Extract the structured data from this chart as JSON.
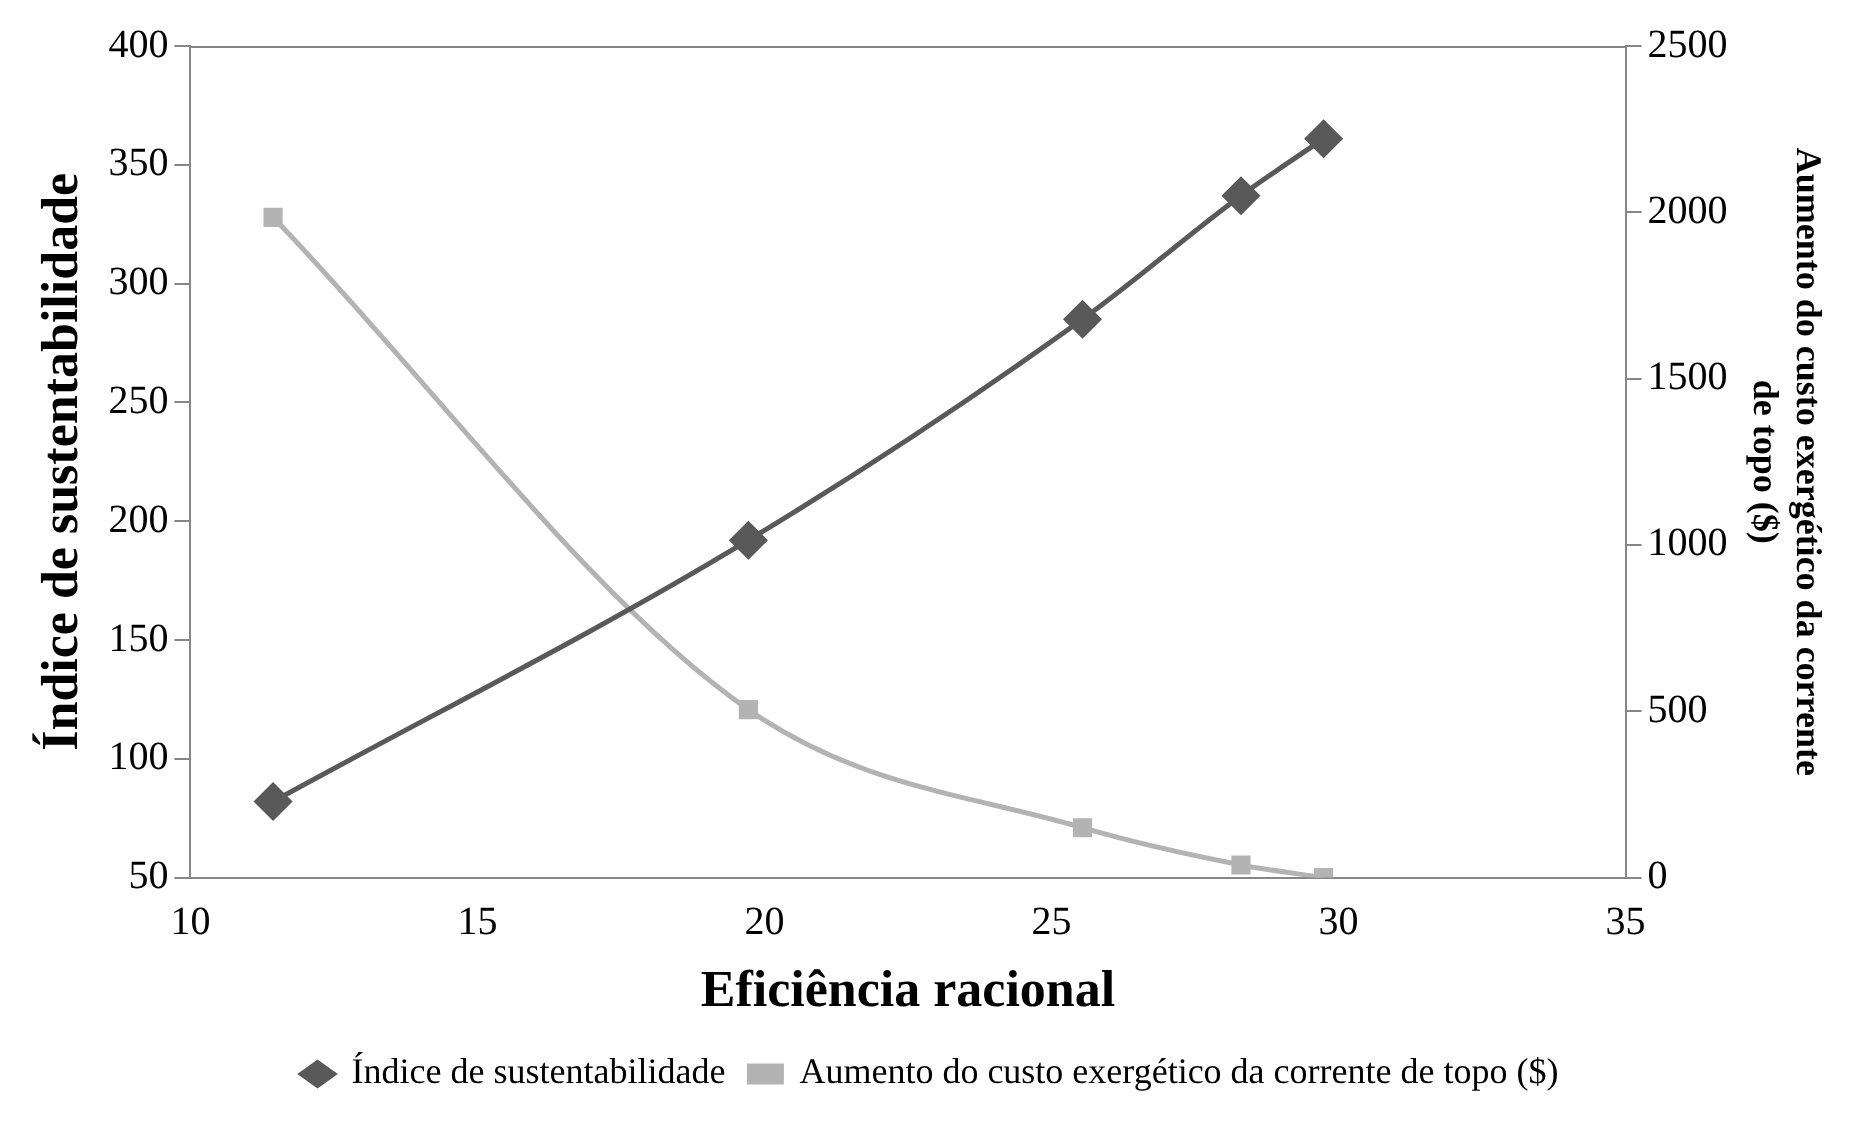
{
  "chart_data": {
    "type": "line",
    "xlabel": "Eficiência racional",
    "ylabel": "Índice de sustentabilidade",
    "y2label": "Aumento do custo exergético da corrente de topo ($)",
    "x": [
      11.44,
      19.72,
      25.54,
      28.3,
      29.74
    ],
    "series": [
      {
        "name": "Índice de sustentabilidade",
        "color": "#595959",
        "marker": "diamond",
        "values": [
          82,
          192,
          285,
          337,
          361
        ]
      },
      {
        "name": "Aumento do custo exergético da corrente de topo ($)",
        "color": "#b3b3b3",
        "marker": "square",
        "axis": "y2",
        "values": [
          1985,
          505,
          150,
          38,
          0
        ]
      }
    ],
    "xlim": [
      10,
      35
    ],
    "xticks": [
      10,
      15,
      20,
      25,
      30,
      35
    ],
    "ylim": [
      50,
      400
    ],
    "yticks": [
      50,
      100,
      150,
      200,
      250,
      300,
      350,
      400
    ],
    "y2lim": [
      0,
      2500
    ],
    "y2ticks": [
      0,
      500,
      1000,
      1500,
      2000,
      2500
    ],
    "grid": false,
    "legend": "bottom"
  }
}
